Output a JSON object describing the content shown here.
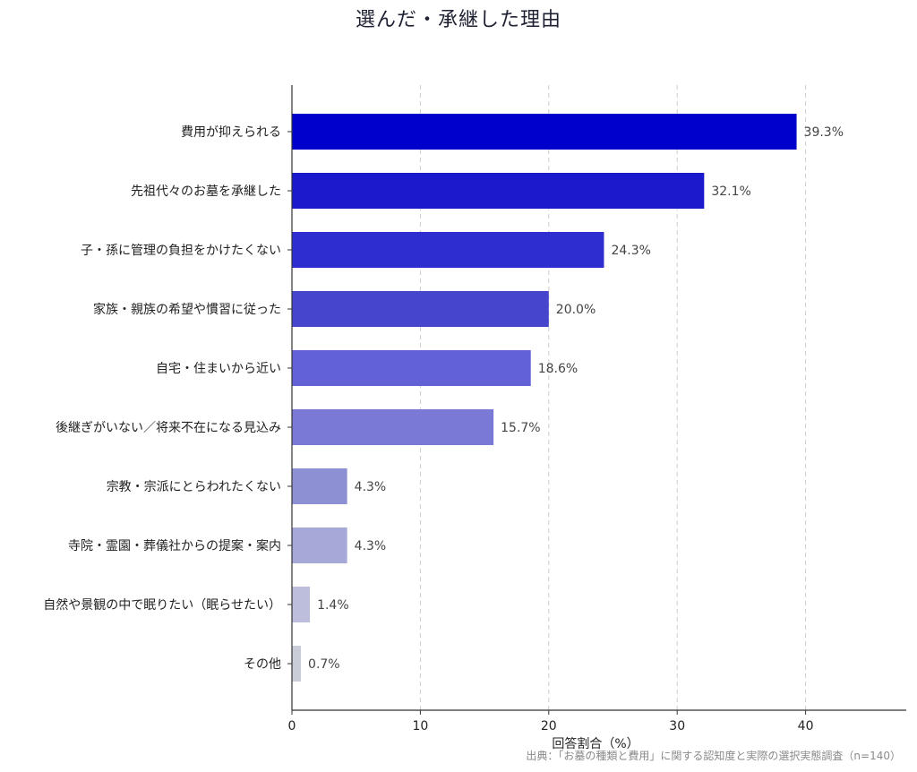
{
  "chart_data": {
    "type": "bar",
    "orientation": "horizontal",
    "title": "選んだ・承継した理由",
    "xlabel": "回答割合（%）",
    "ylabel": "",
    "xlim": [
      0,
      48
    ],
    "xticks": [
      0,
      10,
      20,
      30,
      40
    ],
    "grid": "x-dashed",
    "categories": [
      "費用が抑えられる",
      "先祖代々のお墓を承継した",
      "子・孫に管理の負担をかけたくない",
      "家族・親族の希望や慣習に従った",
      "自宅・住まいから近い",
      "後継ぎがいない／将来不在になる見込み",
      "宗教・宗派にとらわれたくない",
      "寺院・霊園・葬儀社からの提案・案内",
      "自然や景観の中で眠りたい（眠らせたい）",
      "その他"
    ],
    "values": [
      39.3,
      32.1,
      24.3,
      20.0,
      18.6,
      15.7,
      4.3,
      4.3,
      1.4,
      0.7
    ],
    "value_labels": [
      "39.3%",
      "32.1%",
      "24.3%",
      "20.0%",
      "18.6%",
      "15.7%",
      "4.3%",
      "4.3%",
      "1.4%",
      "0.7%"
    ],
    "colors": [
      "#0000cc",
      "#1a1acc",
      "#2e2ed0",
      "#4646cc",
      "#6262d6",
      "#7a7ad6",
      "#8e90d4",
      "#a6a8d8",
      "#bcbedc",
      "#c8cdd8"
    ],
    "source": "出典：「お墓の種類と費用」に関する認知度と実際の選択実態調査（n=140）"
  }
}
